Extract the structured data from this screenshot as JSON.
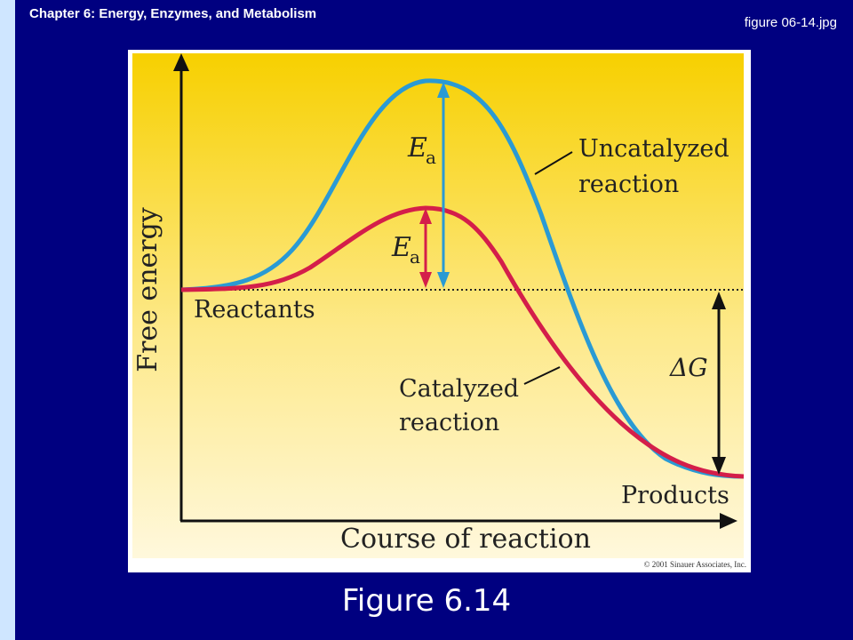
{
  "header": {
    "chapter_title": "Chapter 6: Energy, Enzymes, and Metabolism",
    "file_name": "figure 06-14.jpg"
  },
  "figure": {
    "y_axis_label": "Free energy",
    "x_axis_label": "Course of reaction",
    "label_reactants": "Reactants",
    "label_products": "Products",
    "label_uncatalyzed_line1": "Uncatalyzed",
    "label_uncatalyzed_line2": "reaction",
    "label_catalyzed_line1": "Catalyzed",
    "label_catalyzed_line2": "reaction",
    "ea_symbol": "E",
    "ea_subscript": "a",
    "delta_g_label": "ΔG",
    "copyright": "© 2001 Sinauer Associates, Inc.",
    "colors": {
      "uncatalyzed": "#2a9ad4",
      "catalyzed": "#d41e4a",
      "background_top": "#f7d000",
      "background_bottom": "#fff7d8"
    }
  },
  "caption": "Figure 6.14"
}
